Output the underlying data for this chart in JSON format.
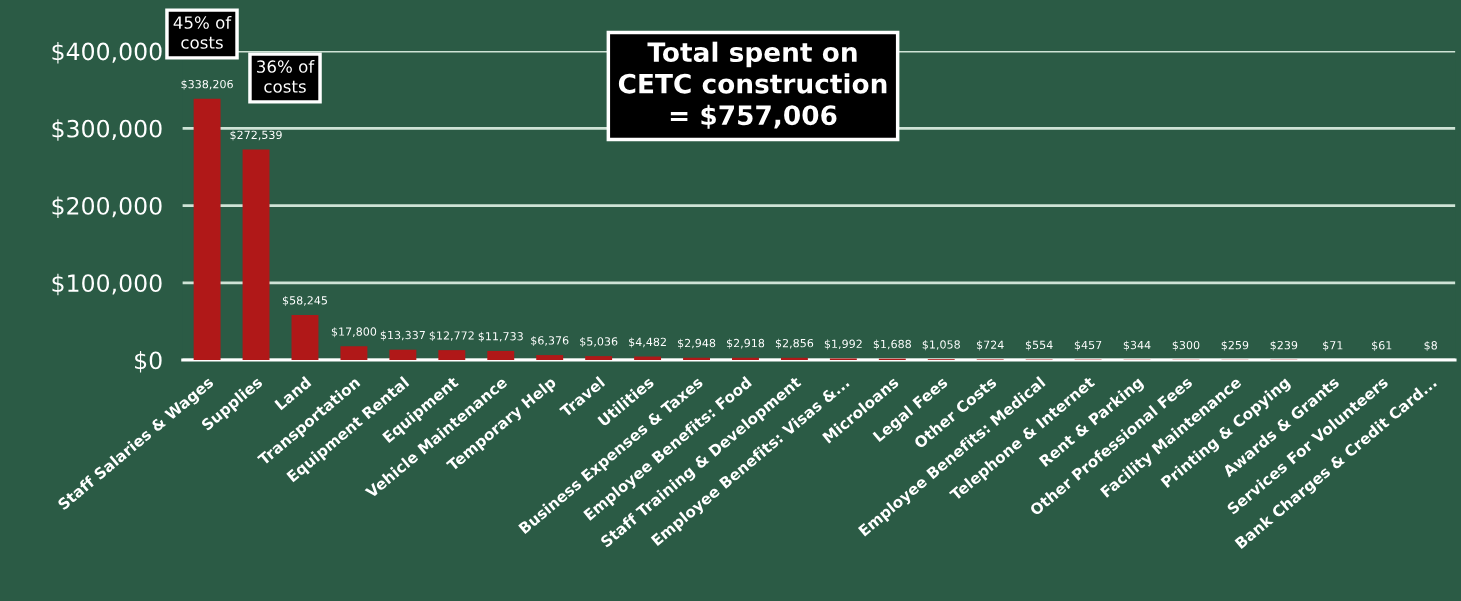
{
  "chart_data": {
    "type": "bar",
    "categories": [
      "Staff Salaries & Wages",
      "Supplies",
      "Land",
      "Transportation",
      "Equipment Rental",
      "Equipment",
      "Vehicle Maintenance",
      "Temporary Help",
      "Travel",
      "Utilities",
      "Business Expenses & Taxes",
      "Employee Benefits: Food",
      "Staff Training & Development",
      "Employee Benefits: Visas &...",
      "Microloans",
      "Legal Fees",
      "Other Costs",
      "Employee Benefits: Medical",
      "Telephone & Internet",
      "Rent & Parking",
      "Other Professional Fees",
      "Facility Maintenance",
      "Printing & Copying",
      "Awards & Grants",
      "Services For Volunteers",
      "Bank Charges & Credit Card..."
    ],
    "values": [
      338206,
      272539,
      58245,
      17800,
      13337,
      12772,
      11733,
      6376,
      5036,
      4482,
      2948,
      2918,
      2856,
      1992,
      1688,
      1058,
      724,
      554,
      457,
      344,
      300,
      259,
      239,
      71,
      61,
      8
    ],
    "value_labels": [
      "$338,206",
      "$272,539",
      "$58,245",
      "$17,800",
      "$13,337",
      "$12,772",
      "$11,733",
      "$6,376",
      "$5,036",
      "$4,482",
      "$2,948",
      "$2,918",
      "$2,856",
      "$1,992",
      "$1,688",
      "$1,058",
      "$724",
      "$554",
      "$457",
      "$344",
      "$300",
      "$259",
      "$239",
      "$71",
      "$61",
      "$8"
    ],
    "color": "#b01818",
    "ylim": [
      0,
      400000
    ],
    "yticks": [
      {
        "value": 0,
        "label": "$0"
      },
      {
        "value": 100000,
        "label": "$100,000"
      },
      {
        "value": 200000,
        "label": "$200,000"
      },
      {
        "value": 300000,
        "label": "$300,000"
      },
      {
        "value": 400000,
        "label": "$400,000"
      }
    ],
    "grid": "y",
    "annotations": [
      "45% of\ncosts",
      "36% of\ncosts",
      "Total spent on\nCETC construction\n= $757,006"
    ]
  }
}
